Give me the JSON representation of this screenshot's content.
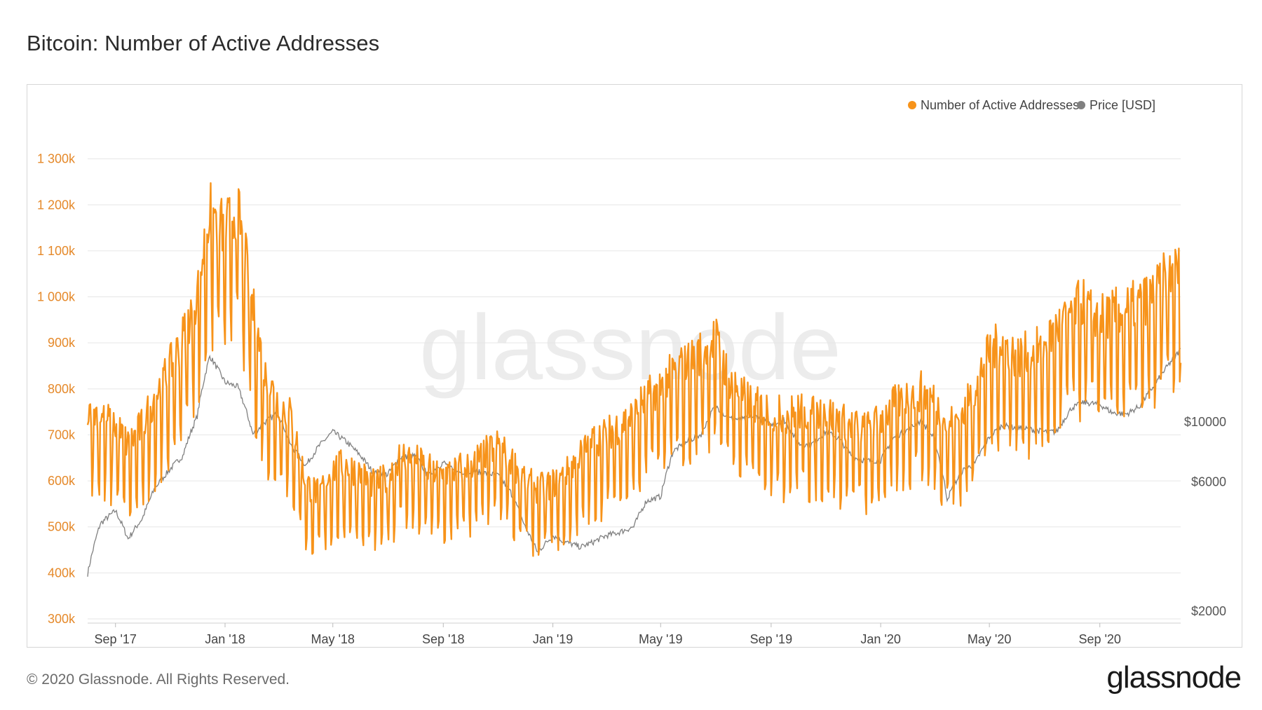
{
  "title": "Bitcoin: Number of Active Addresses",
  "footer": "© 2020 Glassnode. All Rights Reserved.",
  "brand": "glassnode",
  "watermark": "glassnode",
  "colors": {
    "addresses": "#f7931a",
    "price": "#808080",
    "grid": "#e6e6e6"
  },
  "legend": [
    {
      "label": "Number of Active Addresses",
      "color": "#f7931a"
    },
    {
      "label": "Price [USD]",
      "color": "#808080"
    }
  ],
  "chart_data": {
    "type": "line",
    "title": "Bitcoin: Number of Active Addresses",
    "x_range": [
      "2017-08-01",
      "2020-11-30"
    ],
    "x_ticks": [
      {
        "label": "Sep '17",
        "date": "2017-09-01"
      },
      {
        "label": "Jan '18",
        "date": "2018-01-01"
      },
      {
        "label": "May '18",
        "date": "2018-05-01"
      },
      {
        "label": "Sep '18",
        "date": "2018-09-01"
      },
      {
        "label": "Jan '19",
        "date": "2019-01-01"
      },
      {
        "label": "May '19",
        "date": "2019-05-01"
      },
      {
        "label": "Sep '19",
        "date": "2019-09-01"
      },
      {
        "label": "Jan '20",
        "date": "2020-01-01"
      },
      {
        "label": "May '20",
        "date": "2020-05-01"
      },
      {
        "label": "Sep '20",
        "date": "2020-09-01"
      }
    ],
    "y_left": {
      "ylim": [
        300000,
        1400000
      ],
      "ticks": [
        {
          "label": "300k",
          "value": 300000
        },
        {
          "label": "400k",
          "value": 400000
        },
        {
          "label": "500k",
          "value": 500000
        },
        {
          "label": "600k",
          "value": 600000
        },
        {
          "label": "700k",
          "value": 700000
        },
        {
          "label": "800k",
          "value": 800000
        },
        {
          "label": "900k",
          "value": 900000
        },
        {
          "label": "1 000k",
          "value": 1000000
        },
        {
          "label": "1 100k",
          "value": 1100000
        },
        {
          "label": "1 200k",
          "value": 1200000
        },
        {
          "label": "1 300k",
          "value": 1300000
        }
      ]
    },
    "y_right": {
      "scale": "log",
      "ticks": [
        {
          "label": "$2000",
          "value": 2000
        },
        {
          "label": "$6000",
          "value": 6000
        },
        {
          "label": "$10000",
          "value": 10000
        }
      ]
    },
    "series": [
      {
        "name": "Number of Active Addresses",
        "axis": "left",
        "points": [
          [
            "2017-08-01",
            720000
          ],
          [
            "2017-08-15",
            700000
          ],
          [
            "2017-09-01",
            680000
          ],
          [
            "2017-09-15",
            640000
          ],
          [
            "2017-10-01",
            680000
          ],
          [
            "2017-10-15",
            740000
          ],
          [
            "2017-11-01",
            800000
          ],
          [
            "2017-11-15",
            860000
          ],
          [
            "2017-12-01",
            950000
          ],
          [
            "2017-12-15",
            1120000
          ],
          [
            "2018-01-01",
            1080000
          ],
          [
            "2018-01-15",
            1130000
          ],
          [
            "2018-02-01",
            920000
          ],
          [
            "2018-02-15",
            780000
          ],
          [
            "2018-03-01",
            730000
          ],
          [
            "2018-03-15",
            700000
          ],
          [
            "2018-04-01",
            560000
          ],
          [
            "2018-04-15",
            540000
          ],
          [
            "2018-05-01",
            590000
          ],
          [
            "2018-05-15",
            600000
          ],
          [
            "2018-06-01",
            580000
          ],
          [
            "2018-06-15",
            560000
          ],
          [
            "2018-07-01",
            570000
          ],
          [
            "2018-07-15",
            620000
          ],
          [
            "2018-08-01",
            610000
          ],
          [
            "2018-08-15",
            590000
          ],
          [
            "2018-09-01",
            580000
          ],
          [
            "2018-09-15",
            590000
          ],
          [
            "2018-10-01",
            600000
          ],
          [
            "2018-10-15",
            620000
          ],
          [
            "2018-11-01",
            640000
          ],
          [
            "2018-11-15",
            610000
          ],
          [
            "2018-12-01",
            570000
          ],
          [
            "2018-12-15",
            550000
          ],
          [
            "2019-01-01",
            560000
          ],
          [
            "2019-01-15",
            580000
          ],
          [
            "2019-02-01",
            620000
          ],
          [
            "2019-02-15",
            650000
          ],
          [
            "2019-03-01",
            660000
          ],
          [
            "2019-03-15",
            680000
          ],
          [
            "2019-04-01",
            700000
          ],
          [
            "2019-04-15",
            740000
          ],
          [
            "2019-05-01",
            760000
          ],
          [
            "2019-05-15",
            790000
          ],
          [
            "2019-06-01",
            810000
          ],
          [
            "2019-06-15",
            830000
          ],
          [
            "2019-07-01",
            860000
          ],
          [
            "2019-07-15",
            780000
          ],
          [
            "2019-08-01",
            740000
          ],
          [
            "2019-08-15",
            720000
          ],
          [
            "2019-09-01",
            710000
          ],
          [
            "2019-09-15",
            700000
          ],
          [
            "2019-10-01",
            710000
          ],
          [
            "2019-10-15",
            700000
          ],
          [
            "2019-11-01",
            710000
          ],
          [
            "2019-11-15",
            690000
          ],
          [
            "2019-12-01",
            680000
          ],
          [
            "2019-12-15",
            670000
          ],
          [
            "2020-01-01",
            690000
          ],
          [
            "2020-01-15",
            720000
          ],
          [
            "2020-02-01",
            740000
          ],
          [
            "2020-02-15",
            750000
          ],
          [
            "2020-03-01",
            730000
          ],
          [
            "2020-03-15",
            680000
          ],
          [
            "2020-04-01",
            700000
          ],
          [
            "2020-04-15",
            760000
          ],
          [
            "2020-05-01",
            830000
          ],
          [
            "2020-05-15",
            850000
          ],
          [
            "2020-06-01",
            820000
          ],
          [
            "2020-06-15",
            830000
          ],
          [
            "2020-07-01",
            840000
          ],
          [
            "2020-07-15",
            880000
          ],
          [
            "2020-08-01",
            920000
          ],
          [
            "2020-08-15",
            930000
          ],
          [
            "2020-09-01",
            900000
          ],
          [
            "2020-09-15",
            910000
          ],
          [
            "2020-10-01",
            920000
          ],
          [
            "2020-10-15",
            930000
          ],
          [
            "2020-11-01",
            950000
          ],
          [
            "2020-11-15",
            990000
          ],
          [
            "2020-11-30",
            1000000
          ]
        ]
      },
      {
        "name": "Price [USD]",
        "axis": "right",
        "points": [
          [
            "2017-08-01",
            2750
          ],
          [
            "2017-08-15",
            4200
          ],
          [
            "2017-09-01",
            4700
          ],
          [
            "2017-09-15",
            3700
          ],
          [
            "2017-10-01",
            4400
          ],
          [
            "2017-10-15",
            5700
          ],
          [
            "2017-11-01",
            6700
          ],
          [
            "2017-11-15",
            7500
          ],
          [
            "2017-12-01",
            10500
          ],
          [
            "2017-12-15",
            17500
          ],
          [
            "2018-01-01",
            14000
          ],
          [
            "2018-01-15",
            13500
          ],
          [
            "2018-02-01",
            9000
          ],
          [
            "2018-02-15",
            10000
          ],
          [
            "2018-03-01",
            10800
          ],
          [
            "2018-03-15",
            8200
          ],
          [
            "2018-04-01",
            6900
          ],
          [
            "2018-04-15",
            8100
          ],
          [
            "2018-05-01",
            9200
          ],
          [
            "2018-05-15",
            8500
          ],
          [
            "2018-06-01",
            7500
          ],
          [
            "2018-06-15",
            6500
          ],
          [
            "2018-07-01",
            6400
          ],
          [
            "2018-07-15",
            7400
          ],
          [
            "2018-08-01",
            7500
          ],
          [
            "2018-08-15",
            6300
          ],
          [
            "2018-09-01",
            7100
          ],
          [
            "2018-09-15",
            6500
          ],
          [
            "2018-10-01",
            6600
          ],
          [
            "2018-10-15",
            6500
          ],
          [
            "2018-11-01",
            6350
          ],
          [
            "2018-11-15",
            5500
          ],
          [
            "2018-12-01",
            4100
          ],
          [
            "2018-12-15",
            3300
          ],
          [
            "2019-01-01",
            3800
          ],
          [
            "2019-01-15",
            3600
          ],
          [
            "2019-02-01",
            3450
          ],
          [
            "2019-02-15",
            3600
          ],
          [
            "2019-03-01",
            3800
          ],
          [
            "2019-03-15",
            3900
          ],
          [
            "2019-04-01",
            4100
          ],
          [
            "2019-04-15",
            5100
          ],
          [
            "2019-05-01",
            5300
          ],
          [
            "2019-05-15",
            7800
          ],
          [
            "2019-06-01",
            8500
          ],
          [
            "2019-06-15",
            9000
          ],
          [
            "2019-07-01",
            11500
          ],
          [
            "2019-07-15",
            10300
          ],
          [
            "2019-08-01",
            10200
          ],
          [
            "2019-08-15",
            10500
          ],
          [
            "2019-09-01",
            9700
          ],
          [
            "2019-09-15",
            10200
          ],
          [
            "2019-10-01",
            8300
          ],
          [
            "2019-10-15",
            8200
          ],
          [
            "2019-11-01",
            9200
          ],
          [
            "2019-11-15",
            8700
          ],
          [
            "2019-12-01",
            7400
          ],
          [
            "2019-12-15",
            7200
          ],
          [
            "2020-01-01",
            7200
          ],
          [
            "2020-01-15",
            8700
          ],
          [
            "2020-02-01",
            9400
          ],
          [
            "2020-02-15",
            10100
          ],
          [
            "2020-03-01",
            8600
          ],
          [
            "2020-03-15",
            5200
          ],
          [
            "2020-04-01",
            6600
          ],
          [
            "2020-04-15",
            7000
          ],
          [
            "2020-05-01",
            8800
          ],
          [
            "2020-05-15",
            9700
          ],
          [
            "2020-06-01",
            9500
          ],
          [
            "2020-06-15",
            9400
          ],
          [
            "2020-07-01",
            9200
          ],
          [
            "2020-07-15",
            9200
          ],
          [
            "2020-08-01",
            11300
          ],
          [
            "2020-08-15",
            11800
          ],
          [
            "2020-09-01",
            11600
          ],
          [
            "2020-09-15",
            10800
          ],
          [
            "2020-10-01",
            10700
          ],
          [
            "2020-10-15",
            11400
          ],
          [
            "2020-11-01",
            13700
          ],
          [
            "2020-11-15",
            16000
          ],
          [
            "2020-11-30",
            18500
          ]
        ]
      }
    ],
    "grid": true,
    "legend_position": "top-right"
  }
}
